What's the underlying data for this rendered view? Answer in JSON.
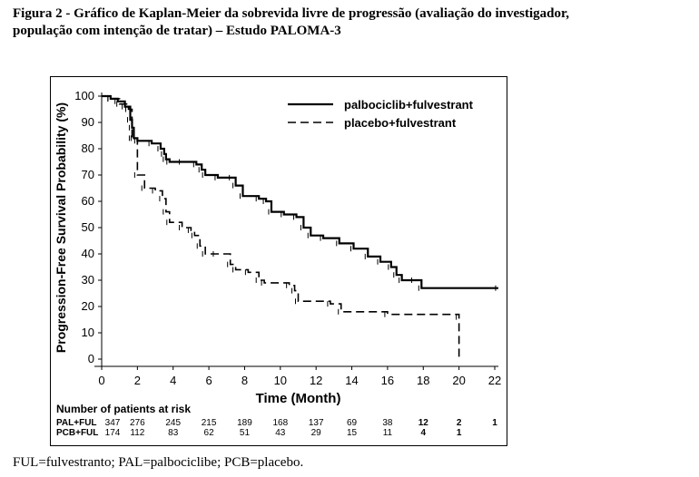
{
  "caption": {
    "line1": "Figura 2 - Gráfico de Kaplan-Meier da sobrevida livre de progressão (avaliação do investigador,",
    "line2": "população com intenção de tratar) – Estudo PALOMA-3"
  },
  "footnote": "FUL=fulvestranto; PAL=palbociclibe; PCB=placebo.",
  "colors": {
    "line": "#000000",
    "background": "#ffffff"
  },
  "chart_data": {
    "type": "line",
    "title": "",
    "xlabel": "Time (Month)",
    "ylabel": "Progression-Free Survival Probability (%)",
    "xlim": [
      0,
      22
    ],
    "ylim": [
      0,
      100
    ],
    "xticks": [
      "0",
      "2",
      "4",
      "6",
      "8",
      "10",
      "12",
      "14",
      "16",
      "18",
      "20",
      "22"
    ],
    "yticks": [
      "0",
      "10",
      "20",
      "30",
      "40",
      "50",
      "60",
      "70",
      "80",
      "90",
      "100"
    ],
    "grid": false,
    "legend_position": "top-right",
    "series": [
      {
        "name": "palbociclib+fulvestrant",
        "style": "solid",
        "x": [
          0,
          0.5,
          0.9,
          1.3,
          1.6,
          1.7,
          1.8,
          2.0,
          2.8,
          3.3,
          3.5,
          3.6,
          3.8,
          4.5,
          5.3,
          5.6,
          5.8,
          6.5,
          7.3,
          7.5,
          7.9,
          8.8,
          9.2,
          9.5,
          10.2,
          10.9,
          11.3,
          11.7,
          12.4,
          13.3,
          14.1,
          14.9,
          15.6,
          16.2,
          16.5,
          16.8,
          17.5,
          17.9,
          22.2
        ],
        "y": [
          100,
          99,
          98,
          96,
          91,
          88,
          84,
          83,
          82,
          80,
          78,
          76,
          75,
          75,
          74,
          72,
          70,
          69,
          69,
          66,
          62,
          61,
          60,
          56,
          55,
          54,
          50,
          47,
          46,
          44,
          42,
          39,
          37,
          35,
          32,
          30,
          30,
          27,
          27
        ]
      },
      {
        "name": "placebo+fulvestrant",
        "style": "dashed",
        "x": [
          0,
          0.5,
          1.0,
          1.5,
          1.7,
          2.0,
          2.4,
          3.0,
          3.4,
          3.6,
          3.8,
          4.5,
          5.0,
          5.2,
          5.5,
          5.8,
          6.4,
          7.2,
          7.5,
          8.2,
          8.8,
          9.1,
          10.5,
          10.8,
          11.0,
          12.8,
          13.4,
          16.0,
          20.0,
          20.0
        ],
        "y": [
          100,
          99,
          97,
          95,
          84,
          70,
          65,
          64,
          61,
          56,
          52,
          50,
          49,
          47,
          43,
          40,
          40,
          36,
          34,
          33,
          30,
          29,
          28,
          26,
          22,
          21,
          18,
          17,
          16,
          0
        ]
      }
    ],
    "at_risk": {
      "title": "Number of patients at risk",
      "time_points": [
        0,
        2,
        4,
        6,
        8,
        10,
        12,
        14,
        16,
        18,
        20,
        22
      ],
      "rows": [
        {
          "label": "PAL+FUL",
          "values": [
            "347",
            "276",
            "245",
            "215",
            "189",
            "168",
            "137",
            "69",
            "38",
            "12",
            "2",
            "1"
          ]
        },
        {
          "label": "PCB+FUL",
          "values": [
            "174",
            "112",
            "83",
            "62",
            "51",
            "43",
            "29",
            "15",
            "11",
            "4",
            "1",
            ""
          ]
        }
      ]
    }
  }
}
